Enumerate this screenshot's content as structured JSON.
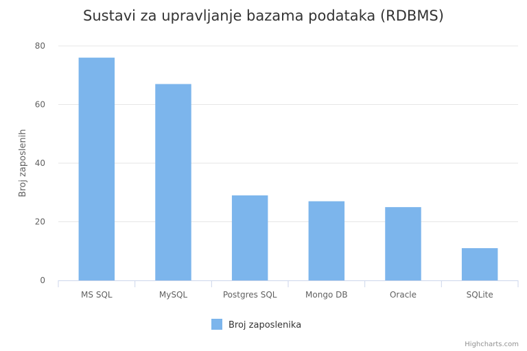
{
  "chart_data": {
    "type": "bar",
    "title": "Sustavi za upravljanje bazama podataka (RDBMS)",
    "categories": [
      "MS SQL",
      "MySQL",
      "Postgres SQL",
      "Mongo DB",
      "Oracle",
      "SQLite"
    ],
    "series": [
      {
        "name": "Broj zaposlenika",
        "values": [
          76,
          67,
          29,
          27,
          25,
          11
        ],
        "color": "#7cb5ec"
      }
    ],
    "ylabel": "Broj zaposlenih",
    "xlabel": "",
    "ylim": [
      0,
      80
    ],
    "yticks": [
      0,
      20,
      40,
      60,
      80
    ],
    "grid": true,
    "legend": "bottom-center"
  },
  "credits": "Highcharts.com",
  "colors": {
    "grid": "#e6e6e6",
    "axis": "#ccd6eb"
  }
}
